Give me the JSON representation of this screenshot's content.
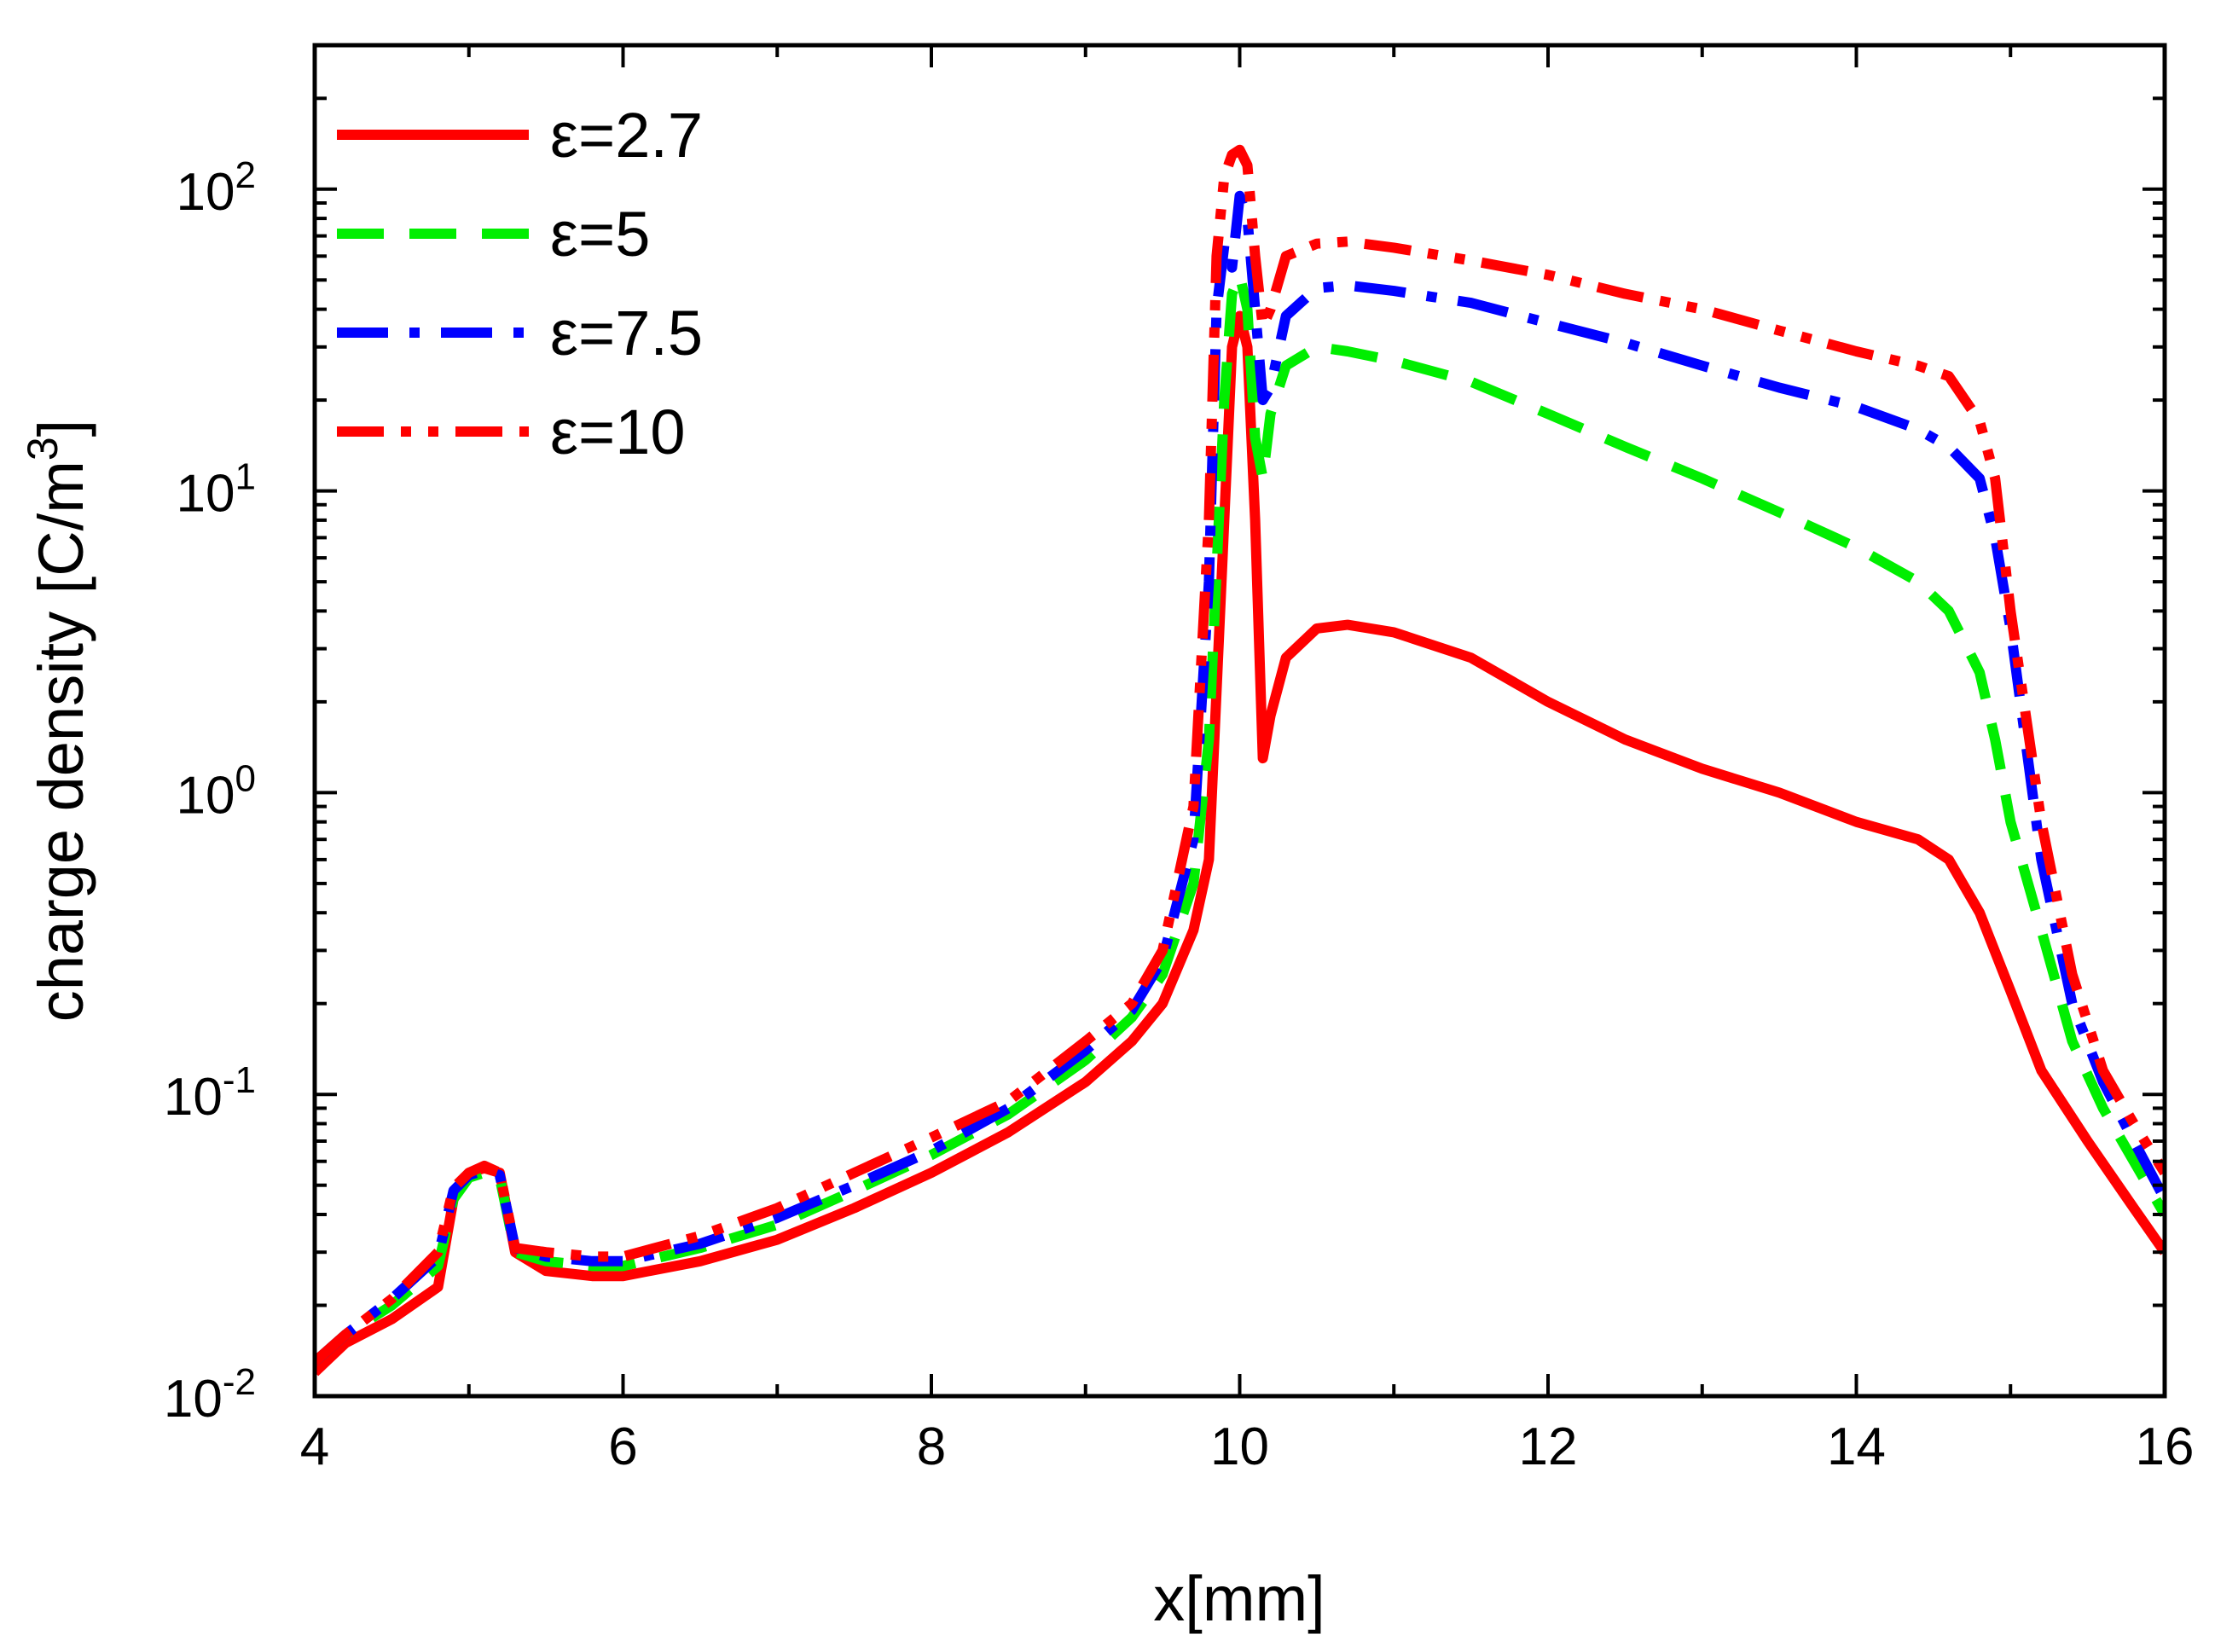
{
  "chart_data": {
    "type": "line",
    "title": "",
    "xlabel": "x[mm]",
    "ylabel": "charge density [C/m",
    "ylabel_sup": "3",
    "ylabel_end": "]",
    "xlim": [
      4,
      16
    ],
    "ylim": [
      0.01,
      300
    ],
    "yscale": "log",
    "xticks": [
      4,
      6,
      8,
      10,
      12,
      14,
      16
    ],
    "xtick_labels": [
      "4",
      "6",
      "8",
      "10",
      "12",
      "14",
      "16"
    ],
    "yticks": [
      {
        "value": 0.01,
        "base": "10",
        "exp": "-2"
      },
      {
        "value": 0.1,
        "base": "10",
        "exp": "-1"
      },
      {
        "value": 1,
        "base": "10",
        "exp": "0"
      },
      {
        "value": 10,
        "base": "10",
        "exp": "1"
      },
      {
        "value": 100,
        "base": "10",
        "exp": "2"
      }
    ],
    "legend_position": "top-left",
    "series": [
      {
        "name": "ε=2.7",
        "color": "#ff0000",
        "style": "solid",
        "x": [
          4.0,
          4.2,
          4.5,
          4.8,
          4.9,
          5.0,
          5.1,
          5.2,
          5.3,
          5.5,
          5.8,
          6.0,
          6.5,
          7.0,
          7.5,
          8.0,
          8.5,
          9.0,
          9.3,
          9.5,
          9.7,
          9.8,
          9.9,
          9.95,
          10.0,
          10.05,
          10.1,
          10.15,
          10.2,
          10.3,
          10.5,
          10.7,
          11.0,
          11.5,
          12.0,
          12.5,
          13.0,
          13.5,
          14.0,
          14.4,
          14.6,
          14.8,
          15.0,
          15.2,
          15.5,
          15.8,
          16.0
        ],
        "y": [
          0.012,
          0.015,
          0.018,
          0.023,
          0.045,
          0.055,
          0.057,
          0.055,
          0.03,
          0.026,
          0.025,
          0.025,
          0.028,
          0.033,
          0.042,
          0.055,
          0.075,
          0.11,
          0.15,
          0.2,
          0.35,
          0.6,
          8.0,
          30.0,
          38.0,
          30.0,
          8.0,
          1.3,
          1.8,
          2.8,
          3.5,
          3.6,
          3.4,
          2.8,
          2.0,
          1.5,
          1.2,
          1.0,
          0.8,
          0.7,
          0.6,
          0.4,
          0.22,
          0.12,
          0.07,
          0.042,
          0.03
        ]
      },
      {
        "name": "ε=5",
        "color": "#00ee00",
        "style": "dashed",
        "x": [
          4.0,
          4.2,
          4.5,
          4.8,
          4.9,
          5.0,
          5.1,
          5.2,
          5.3,
          5.5,
          5.8,
          6.0,
          6.5,
          7.0,
          7.5,
          8.0,
          8.5,
          9.0,
          9.3,
          9.5,
          9.7,
          9.8,
          9.9,
          9.95,
          10.0,
          10.05,
          10.1,
          10.15,
          10.2,
          10.3,
          10.5,
          10.7,
          11.0,
          11.5,
          12.0,
          12.5,
          13.0,
          13.5,
          14.0,
          14.4,
          14.6,
          14.8,
          14.9,
          15.0,
          15.2,
          15.4,
          15.6,
          15.8,
          16.0
        ],
        "y": [
          0.013,
          0.016,
          0.02,
          0.027,
          0.045,
          0.053,
          0.055,
          0.053,
          0.03,
          0.028,
          0.027,
          0.027,
          0.031,
          0.037,
          0.048,
          0.063,
          0.086,
          0.13,
          0.18,
          0.25,
          0.5,
          1.5,
          20.0,
          45.0,
          52.0,
          40.0,
          15.0,
          11.0,
          18.0,
          26.0,
          30.0,
          29.0,
          27.0,
          23.0,
          18.0,
          14.0,
          11.0,
          8.5,
          6.5,
          5.0,
          4.0,
          2.5,
          1.5,
          0.8,
          0.35,
          0.15,
          0.09,
          0.06,
          0.04
        ]
      },
      {
        "name": "ε=7.5",
        "color": "#0000ff",
        "style": "dashdot",
        "x": [
          4.0,
          4.2,
          4.5,
          4.8,
          4.9,
          5.0,
          5.1,
          5.2,
          5.3,
          5.5,
          5.8,
          6.0,
          6.5,
          7.0,
          7.5,
          8.0,
          8.5,
          9.0,
          9.3,
          9.5,
          9.7,
          9.8,
          9.85,
          9.9,
          9.95,
          10.0,
          10.05,
          10.1,
          10.15,
          10.2,
          10.3,
          10.5,
          10.7,
          11.0,
          11.5,
          12.0,
          12.5,
          13.0,
          13.5,
          14.0,
          14.4,
          14.6,
          14.8,
          14.9,
          15.0,
          15.2,
          15.4,
          15.6,
          15.8,
          16.0
        ],
        "y": [
          0.013,
          0.016,
          0.021,
          0.029,
          0.048,
          0.054,
          0.056,
          0.054,
          0.031,
          0.029,
          0.028,
          0.028,
          0.032,
          0.039,
          0.05,
          0.065,
          0.09,
          0.14,
          0.19,
          0.28,
          0.7,
          5.0,
          40.0,
          65.0,
          55.0,
          95.0,
          80.0,
          40.0,
          20.0,
          22.0,
          38.0,
          47.0,
          48.0,
          46.0,
          42.0,
          36.0,
          31.0,
          26.0,
          22.0,
          19.0,
          16.0,
          14.0,
          11.0,
          7.0,
          3.5,
          0.6,
          0.2,
          0.11,
          0.07,
          0.045
        ]
      },
      {
        "name": "ε=10",
        "color": "#ff0000",
        "style": "dashdotdot",
        "x": [
          4.0,
          4.2,
          4.5,
          4.8,
          4.9,
          5.0,
          5.1,
          5.2,
          5.3,
          5.5,
          5.8,
          6.0,
          6.5,
          7.0,
          7.5,
          8.0,
          8.5,
          9.0,
          9.3,
          9.5,
          9.7,
          9.8,
          9.85,
          9.9,
          9.95,
          10.0,
          10.05,
          10.1,
          10.15,
          10.2,
          10.3,
          10.5,
          10.7,
          11.0,
          11.5,
          12.0,
          12.5,
          13.0,
          13.5,
          14.0,
          14.4,
          14.6,
          14.8,
          14.9,
          15.0,
          15.2,
          15.4,
          15.6,
          15.8,
          16.0
        ],
        "y": [
          0.013,
          0.016,
          0.021,
          0.03,
          0.049,
          0.055,
          0.058,
          0.055,
          0.031,
          0.03,
          0.029,
          0.029,
          0.034,
          0.042,
          0.055,
          0.072,
          0.095,
          0.15,
          0.2,
          0.3,
          0.9,
          8.0,
          60.0,
          110.0,
          130.0,
          135.0,
          120.0,
          60.0,
          35.0,
          40.0,
          60.0,
          66.0,
          67.0,
          64.0,
          58.0,
          52.0,
          45.0,
          40.0,
          34.0,
          29.0,
          26.0,
          24.0,
          17.0,
          11.0,
          4.0,
          0.8,
          0.25,
          0.12,
          0.08,
          0.055
        ]
      }
    ]
  }
}
